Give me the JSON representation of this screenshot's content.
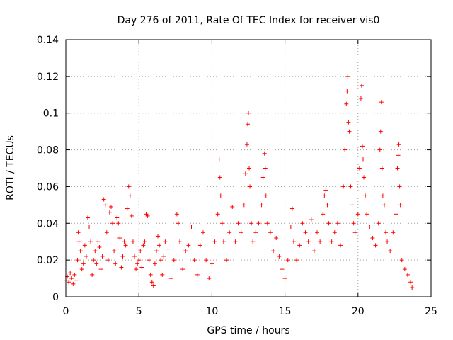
{
  "chart_data": {
    "type": "scatter",
    "title": "Day 276 of 2011, Rate Of TEC Index for receiver vis0",
    "xlabel": "GPS time / hours",
    "ylabel": "ROTI / TECUs",
    "xlim": [
      0,
      25
    ],
    "ylim": [
      0,
      0.14
    ],
    "xticks": [
      0,
      5,
      10,
      15,
      20,
      25
    ],
    "yticks": [
      0,
      0.02,
      0.04,
      0.06,
      0.08,
      0.1,
      0.12,
      0.14
    ],
    "ytick_labels": [
      "0",
      "0.02",
      "0.04",
      "0.06",
      "0.08",
      "0.1",
      "0.12",
      "0.14"
    ],
    "grid": true,
    "marker": "plus",
    "color": "#ff0000",
    "series": [
      {
        "points": [
          [
            0.0,
            0.009
          ],
          [
            0.1,
            0.011
          ],
          [
            0.2,
            0.008
          ],
          [
            0.3,
            0.013
          ],
          [
            0.4,
            0.01
          ],
          [
            0.5,
            0.007
          ],
          [
            0.6,
            0.012
          ],
          [
            0.7,
            0.009
          ],
          [
            0.8,
            0.02
          ],
          [
            0.85,
            0.035
          ],
          [
            0.9,
            0.03
          ],
          [
            1.0,
            0.025
          ],
          [
            1.1,
            0.015
          ],
          [
            1.2,
            0.018
          ],
          [
            1.3,
            0.028
          ],
          [
            1.4,
            0.022
          ],
          [
            1.5,
            0.043
          ],
          [
            1.6,
            0.038
          ],
          [
            1.7,
            0.03
          ],
          [
            1.8,
            0.012
          ],
          [
            1.9,
            0.02
          ],
          [
            2.0,
            0.025
          ],
          [
            2.1,
            0.018
          ],
          [
            2.2,
            0.03
          ],
          [
            2.3,
            0.027
          ],
          [
            2.4,
            0.015
          ],
          [
            2.5,
            0.022
          ],
          [
            2.6,
            0.053
          ],
          [
            2.7,
            0.05
          ],
          [
            2.8,
            0.035
          ],
          [
            2.9,
            0.02
          ],
          [
            3.0,
            0.046
          ],
          [
            3.1,
            0.049
          ],
          [
            3.2,
            0.04
          ],
          [
            3.3,
            0.025
          ],
          [
            3.4,
            0.018
          ],
          [
            3.5,
            0.043
          ],
          [
            3.6,
            0.04
          ],
          [
            3.7,
            0.032
          ],
          [
            3.8,
            0.016
          ],
          [
            3.9,
            0.022
          ],
          [
            4.0,
            0.03
          ],
          [
            4.1,
            0.028
          ],
          [
            4.2,
            0.048
          ],
          [
            4.3,
            0.06
          ],
          [
            4.4,
            0.055
          ],
          [
            4.5,
            0.044
          ],
          [
            4.6,
            0.03
          ],
          [
            4.7,
            0.022
          ],
          [
            4.8,
            0.015
          ],
          [
            4.9,
            0.018
          ],
          [
            5.0,
            0.02
          ],
          [
            5.1,
            0.025
          ],
          [
            5.2,
            0.016
          ],
          [
            5.3,
            0.028
          ],
          [
            5.4,
            0.03
          ],
          [
            5.5,
            0.045
          ],
          [
            5.6,
            0.044
          ],
          [
            5.7,
            0.02
          ],
          [
            5.8,
            0.012
          ],
          [
            5.9,
            0.008
          ],
          [
            6.0,
            0.006
          ],
          [
            6.1,
            0.018
          ],
          [
            6.2,
            0.025
          ],
          [
            6.3,
            0.033
          ],
          [
            6.4,
            0.028
          ],
          [
            6.5,
            0.02
          ],
          [
            6.6,
            0.012
          ],
          [
            6.7,
            0.022
          ],
          [
            6.8,
            0.03
          ],
          [
            7.0,
            0.026
          ],
          [
            7.2,
            0.01
          ],
          [
            7.4,
            0.02
          ],
          [
            7.6,
            0.045
          ],
          [
            7.7,
            0.04
          ],
          [
            7.8,
            0.03
          ],
          [
            8.0,
            0.015
          ],
          [
            8.2,
            0.025
          ],
          [
            8.4,
            0.028
          ],
          [
            8.6,
            0.038
          ],
          [
            8.8,
            0.02
          ],
          [
            9.0,
            0.012
          ],
          [
            9.2,
            0.028
          ],
          [
            9.4,
            0.035
          ],
          [
            9.6,
            0.02
          ],
          [
            9.8,
            0.01
          ],
          [
            10.0,
            0.018
          ],
          [
            10.2,
            0.03
          ],
          [
            10.4,
            0.045
          ],
          [
            10.5,
            0.075
          ],
          [
            10.55,
            0.065
          ],
          [
            10.6,
            0.055
          ],
          [
            10.7,
            0.04
          ],
          [
            10.8,
            0.03
          ],
          [
            11.0,
            0.02
          ],
          [
            11.2,
            0.035
          ],
          [
            11.4,
            0.049
          ],
          [
            11.6,
            0.03
          ],
          [
            11.8,
            0.04
          ],
          [
            12.0,
            0.035
          ],
          [
            12.2,
            0.05
          ],
          [
            12.3,
            0.067
          ],
          [
            12.4,
            0.083
          ],
          [
            12.45,
            0.094
          ],
          [
            12.5,
            0.1
          ],
          [
            12.55,
            0.07
          ],
          [
            12.6,
            0.06
          ],
          [
            12.7,
            0.04
          ],
          [
            12.8,
            0.03
          ],
          [
            13.0,
            0.035
          ],
          [
            13.2,
            0.04
          ],
          [
            13.4,
            0.05
          ],
          [
            13.5,
            0.065
          ],
          [
            13.6,
            0.078
          ],
          [
            13.65,
            0.07
          ],
          [
            13.7,
            0.055
          ],
          [
            13.8,
            0.04
          ],
          [
            14.0,
            0.035
          ],
          [
            14.2,
            0.025
          ],
          [
            14.4,
            0.032
          ],
          [
            14.6,
            0.022
          ],
          [
            14.8,
            0.015
          ],
          [
            15.0,
            0.01
          ],
          [
            15.2,
            0.02
          ],
          [
            15.4,
            0.038
          ],
          [
            15.5,
            0.048
          ],
          [
            15.6,
            0.03
          ],
          [
            15.8,
            0.02
          ],
          [
            16.0,
            0.028
          ],
          [
            16.2,
            0.04
          ],
          [
            16.4,
            0.035
          ],
          [
            16.6,
            0.03
          ],
          [
            16.8,
            0.042
          ],
          [
            17.0,
            0.025
          ],
          [
            17.2,
            0.035
          ],
          [
            17.4,
            0.03
          ],
          [
            17.6,
            0.045
          ],
          [
            17.7,
            0.055
          ],
          [
            17.8,
            0.058
          ],
          [
            17.9,
            0.05
          ],
          [
            18.0,
            0.04
          ],
          [
            18.2,
            0.03
          ],
          [
            18.4,
            0.035
          ],
          [
            18.6,
            0.04
          ],
          [
            18.8,
            0.028
          ],
          [
            19.0,
            0.06
          ],
          [
            19.1,
            0.08
          ],
          [
            19.2,
            0.105
          ],
          [
            19.25,
            0.112
          ],
          [
            19.3,
            0.12
          ],
          [
            19.35,
            0.095
          ],
          [
            19.4,
            0.09
          ],
          [
            19.5,
            0.06
          ],
          [
            19.6,
            0.05
          ],
          [
            19.7,
            0.04
          ],
          [
            19.8,
            0.035
          ],
          [
            20.0,
            0.045
          ],
          [
            20.1,
            0.07
          ],
          [
            20.2,
            0.108
          ],
          [
            20.25,
            0.115
          ],
          [
            20.3,
            0.082
          ],
          [
            20.35,
            0.075
          ],
          [
            20.4,
            0.065
          ],
          [
            20.5,
            0.055
          ],
          [
            20.6,
            0.045
          ],
          [
            20.8,
            0.038
          ],
          [
            21.0,
            0.032
          ],
          [
            21.2,
            0.028
          ],
          [
            21.4,
            0.04
          ],
          [
            21.5,
            0.08
          ],
          [
            21.55,
            0.09
          ],
          [
            21.6,
            0.106
          ],
          [
            21.65,
            0.07
          ],
          [
            21.7,
            0.055
          ],
          [
            21.8,
            0.05
          ],
          [
            21.9,
            0.035
          ],
          [
            22.0,
            0.03
          ],
          [
            22.2,
            0.025
          ],
          [
            22.4,
            0.035
          ],
          [
            22.6,
            0.045
          ],
          [
            22.7,
            0.07
          ],
          [
            22.75,
            0.077
          ],
          [
            22.8,
            0.083
          ],
          [
            22.85,
            0.06
          ],
          [
            22.9,
            0.05
          ],
          [
            23.0,
            0.02
          ],
          [
            23.2,
            0.015
          ],
          [
            23.4,
            0.012
          ],
          [
            23.6,
            0.008
          ],
          [
            23.7,
            0.005
          ]
        ]
      }
    ]
  }
}
